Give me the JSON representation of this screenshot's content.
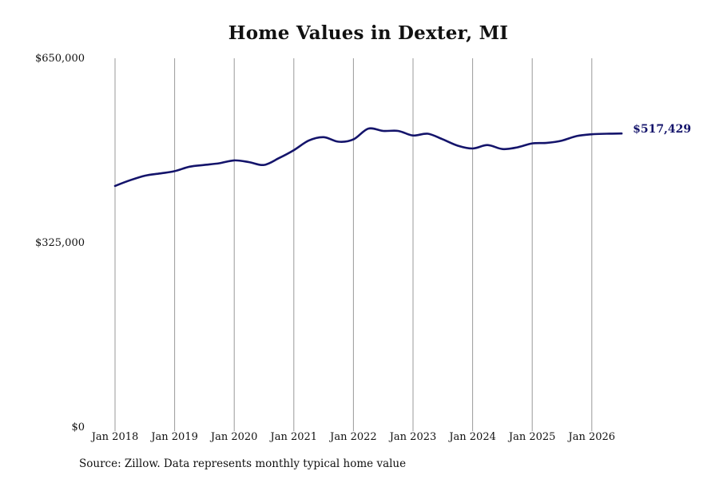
{
  "chart_data": {
    "type": "line",
    "title": "Home Values in Dexter, MI",
    "xlabel": "",
    "ylabel": "",
    "x_tick_labels": [
      "Jan 2018",
      "Jan 2019",
      "Jan 2020",
      "Jan 2021",
      "Jan 2022",
      "Jan 2023",
      "Jan 2024",
      "Jan 2025",
      "Jan 2026"
    ],
    "y_tick_labels": [
      "$0",
      "$325,000",
      "$650,000"
    ],
    "ylim": [
      0,
      650000
    ],
    "grid": "vertical lines at each year",
    "series": [
      {
        "color": "#14146b",
        "x": [
          "2018-01",
          "2018-04",
          "2018-07",
          "2018-10",
          "2019-01",
          "2019-04",
          "2019-07",
          "2019-10",
          "2020-01",
          "2020-04",
          "2020-07",
          "2020-10",
          "2021-01",
          "2021-04",
          "2021-07",
          "2021-10",
          "2022-01",
          "2022-04",
          "2022-07",
          "2022-10",
          "2023-01",
          "2023-04",
          "2023-07",
          "2023-10",
          "2024-01",
          "2024-04",
          "2024-07",
          "2024-10",
          "2025-01",
          "2025-04",
          "2025-07",
          "2025-10",
          "2026-01",
          "2026-04",
          "2026-07"
        ],
        "values": [
          425000,
          435000,
          443000,
          447000,
          451000,
          459000,
          462000,
          465000,
          470000,
          467000,
          462000,
          474000,
          488000,
          505000,
          511000,
          503000,
          507000,
          526000,
          522000,
          522000,
          514000,
          517000,
          507000,
          496000,
          491000,
          497000,
          490000,
          493000,
          500000,
          501000,
          505000,
          513000,
          516000,
          517000,
          517429
        ]
      }
    ],
    "end_label": "$517,429"
  },
  "source_note": "Source: Zillow. Data represents monthly typical home value"
}
